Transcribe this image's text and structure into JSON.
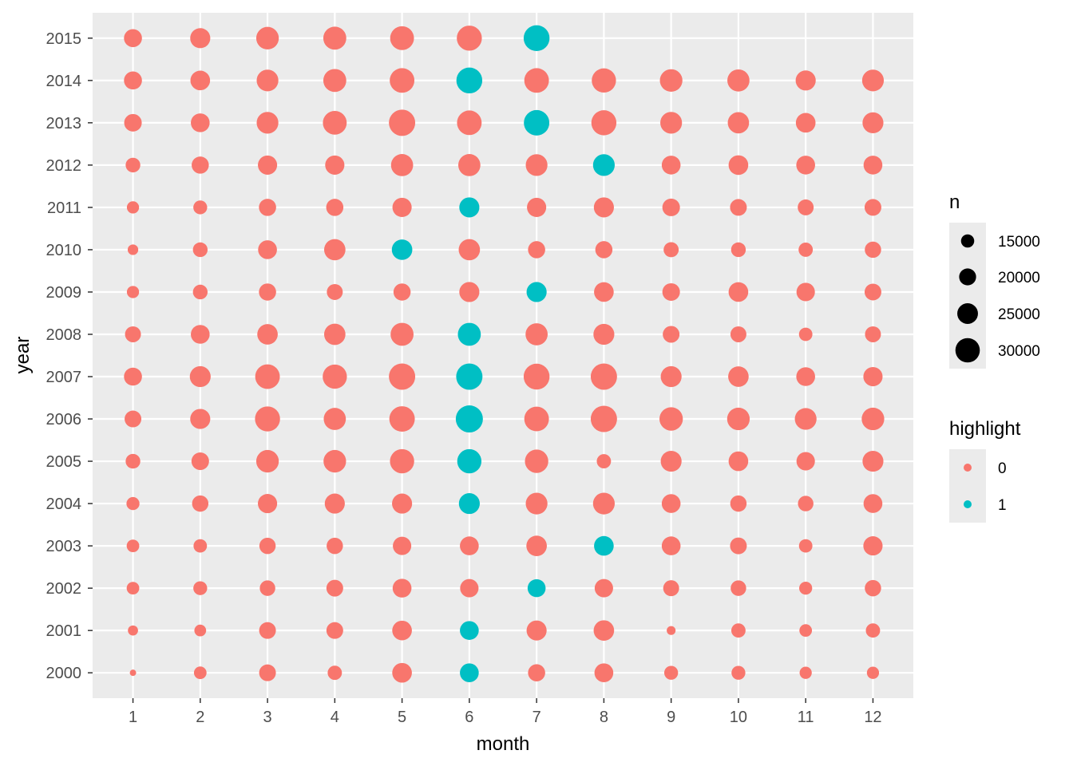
{
  "chart_data": {
    "type": "scatter",
    "xlabel": "month",
    "ylabel": "year",
    "x_ticks": [
      1,
      2,
      3,
      4,
      5,
      6,
      7,
      8,
      9,
      10,
      11,
      12
    ],
    "y_ticks": [
      2000,
      2001,
      2002,
      2003,
      2004,
      2005,
      2006,
      2007,
      2008,
      2009,
      2010,
      2011,
      2012,
      2013,
      2014,
      2015
    ],
    "xlim": [
      0.4,
      12.6
    ],
    "ylim": [
      1999.4,
      2015.6
    ],
    "grid": true,
    "size_variable": "n",
    "color_variable": "highlight",
    "colors": {
      "0": "#F8766D",
      "1": "#00BFC4"
    },
    "legends": {
      "size": {
        "title": "n",
        "entries": [
          {
            "label": "15000",
            "value": 15000
          },
          {
            "label": "20000",
            "value": 20000
          },
          {
            "label": "25000",
            "value": 25000
          },
          {
            "label": "30000",
            "value": 30000
          }
        ]
      },
      "color": {
        "title": "highlight",
        "entries": [
          {
            "label": "0",
            "color": "#F8766D"
          },
          {
            "label": "1",
            "color": "#00BFC4"
          }
        ]
      }
    },
    "rows": [
      {
        "year": 2015,
        "n": [
          19000,
          21500,
          24500,
          25000,
          26000,
          27500,
          28500,
          null,
          null,
          null,
          null,
          null
        ],
        "highlight_month": 7
      },
      {
        "year": 2014,
        "n": [
          19000,
          21000,
          23500,
          25000,
          27000,
          28500,
          27000,
          26500,
          24500,
          24000,
          21500,
          23500
        ],
        "highlight_month": 6
      },
      {
        "year": 2013,
        "n": [
          18500,
          20000,
          23500,
          26000,
          29000,
          27000,
          28000,
          27500,
          23500,
          23000,
          21000,
          22500
        ],
        "highlight_month": 7
      },
      {
        "year": 2012,
        "n": [
          15000,
          18000,
          20500,
          20500,
          24000,
          24000,
          23500,
          23500,
          20000,
          21000,
          20000,
          20000
        ],
        "highlight_month": 8
      },
      {
        "year": 2011,
        "n": [
          12000,
          14000,
          18000,
          18000,
          20500,
          21500,
          20500,
          21500,
          18500,
          17500,
          16500,
          17500
        ],
        "highlight_month": 6
      },
      {
        "year": 2010,
        "n": [
          10000,
          15000,
          20000,
          23000,
          22000,
          23000,
          18000,
          18000,
          15500,
          15000,
          14500,
          17000
        ],
        "highlight_month": 5
      },
      {
        "year": 2009,
        "n": [
          12000,
          15000,
          18000,
          16500,
          18000,
          21500,
          21500,
          21000,
          18500,
          21000,
          19500,
          17500
        ],
        "highlight_month": 7
      },
      {
        "year": 2008,
        "n": [
          16500,
          20000,
          22000,
          23000,
          25000,
          25000,
          24000,
          22500,
          17500,
          16500,
          13500,
          16500
        ],
        "highlight_month": 6
      },
      {
        "year": 2007,
        "n": [
          19000,
          22500,
          27000,
          26500,
          29000,
          29000,
          28500,
          29000,
          22500,
          22000,
          20000,
          20500
        ],
        "highlight_month": 6
      },
      {
        "year": 2006,
        "n": [
          17500,
          21500,
          27500,
          24000,
          28000,
          30000,
          27000,
          29000,
          25500,
          24500,
          23500,
          24500
        ],
        "highlight_month": 6
      },
      {
        "year": 2005,
        "n": [
          15000,
          18500,
          24500,
          24500,
          26500,
          26500,
          25500,
          14500,
          22500,
          21000,
          19500,
          22500
        ],
        "highlight_month": 6
      },
      {
        "year": 2004,
        "n": [
          13000,
          17000,
          20500,
          21500,
          21500,
          22500,
          23500,
          23500,
          20000,
          17000,
          16000,
          20000
        ],
        "highlight_month": 6
      },
      {
        "year": 2003,
        "n": [
          12500,
          13500,
          17000,
          17000,
          19500,
          20000,
          22000,
          21000,
          20000,
          17500,
          13500,
          20500
        ],
        "highlight_month": 8
      },
      {
        "year": 2002,
        "n": [
          12500,
          14000,
          16000,
          17500,
          20000,
          19500,
          19000,
          19500,
          16500,
          16000,
          13000,
          17000
        ],
        "highlight_month": 7
      },
      {
        "year": 2001,
        "n": [
          9500,
          11500,
          17500,
          17500,
          21000,
          20000,
          21500,
          22000,
          8000,
          14500,
          12500,
          14500
        ],
        "highlight_month": 6
      },
      {
        "year": 2000,
        "n": [
          5000,
          12500,
          17500,
          14500,
          21000,
          20000,
          18000,
          20000,
          14000,
          14000,
          12000,
          12000
        ],
        "highlight_month": 6
      }
    ]
  }
}
